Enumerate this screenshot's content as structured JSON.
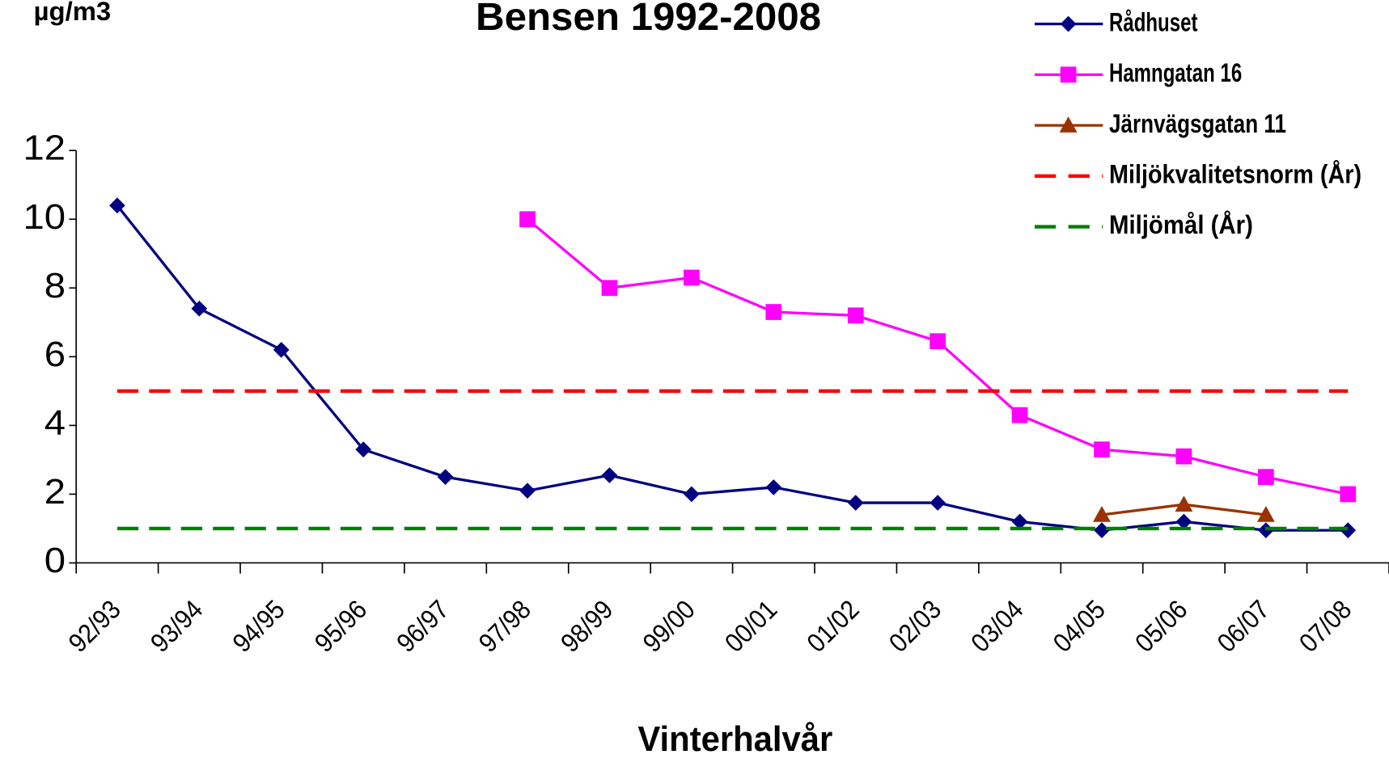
{
  "chart_data": {
    "type": "line",
    "title": "Bensen 1992-2008",
    "y_label": "µg/m3",
    "x_label": "Vinterhalvår",
    "categories": [
      "92/93",
      "93/94",
      "94/95",
      "95/96",
      "96/97",
      "97/98",
      "98/99",
      "99/00",
      "00/01",
      "01/02",
      "02/03",
      "03/04",
      "04/05",
      "05/06",
      "06/07",
      "07/08"
    ],
    "ylim": [
      0,
      12
    ],
    "yticks": [
      0,
      2,
      4,
      6,
      8,
      10,
      12
    ],
    "legend": "top-right",
    "series": [
      {
        "name": "Rådhuset",
        "color": "#000080",
        "marker": "diamond",
        "values": [
          10.4,
          7.4,
          6.2,
          3.3,
          2.5,
          2.1,
          2.55,
          2.0,
          2.2,
          1.75,
          1.75,
          1.2,
          0.95,
          1.2,
          0.95,
          0.95
        ]
      },
      {
        "name": "Hamngatan 16",
        "color": "#ff00ff",
        "marker": "square",
        "values": [
          null,
          null,
          null,
          null,
          null,
          10.0,
          8.0,
          8.3,
          7.3,
          7.2,
          6.45,
          4.3,
          3.3,
          3.1,
          2.5,
          2.0
        ]
      },
      {
        "name": "Järnvägsgatan 11",
        "color": "#993300",
        "marker": "triangle",
        "values": [
          null,
          null,
          null,
          null,
          null,
          null,
          null,
          null,
          null,
          null,
          null,
          null,
          1.4,
          1.7,
          1.4,
          null
        ]
      },
      {
        "name": "Miljökvalitetsnorm (År)",
        "color": "#ff0000",
        "dashed": true,
        "values": [
          5,
          5,
          5,
          5,
          5,
          5,
          5,
          5,
          5,
          5,
          5,
          5,
          5,
          5,
          5,
          5
        ]
      },
      {
        "name": "Miljömål (År)",
        "color": "#008000",
        "dashed": true,
        "values": [
          1,
          1,
          1,
          1,
          1,
          1,
          1,
          1,
          1,
          1,
          1,
          1,
          1,
          1,
          1,
          1
        ]
      }
    ]
  }
}
